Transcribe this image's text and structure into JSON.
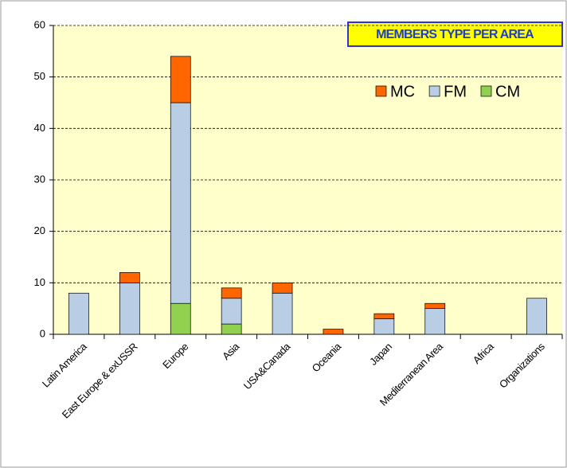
{
  "chart_data": {
    "type": "stacked_bar",
    "title": "MEMBERS TYPE PER AREA",
    "categories": [
      "Latin America",
      "East Europe & exUSSR",
      "Europe",
      "Asia",
      "USA&Canada",
      "Oceania",
      "Japan",
      "Mediterranean Area",
      "Africa",
      "Organizations"
    ],
    "series": [
      {
        "name": "MC",
        "color": "#ff6600",
        "values": [
          0,
          2,
          9,
          2,
          2,
          1,
          1,
          1,
          0,
          0
        ]
      },
      {
        "name": "FM",
        "color": "#b9cde5",
        "values": [
          8,
          10,
          39,
          5,
          8,
          0,
          3,
          5,
          0,
          7
        ]
      },
      {
        "name": "CM",
        "color": "#92d050",
        "values": [
          0,
          0,
          6,
          2,
          0,
          0,
          0,
          0,
          0,
          0
        ]
      }
    ],
    "ylim": [
      0,
      60
    ],
    "yticks": [
      0,
      10,
      20,
      30,
      40,
      50,
      60
    ],
    "grid": true,
    "legend": "top-right"
  }
}
